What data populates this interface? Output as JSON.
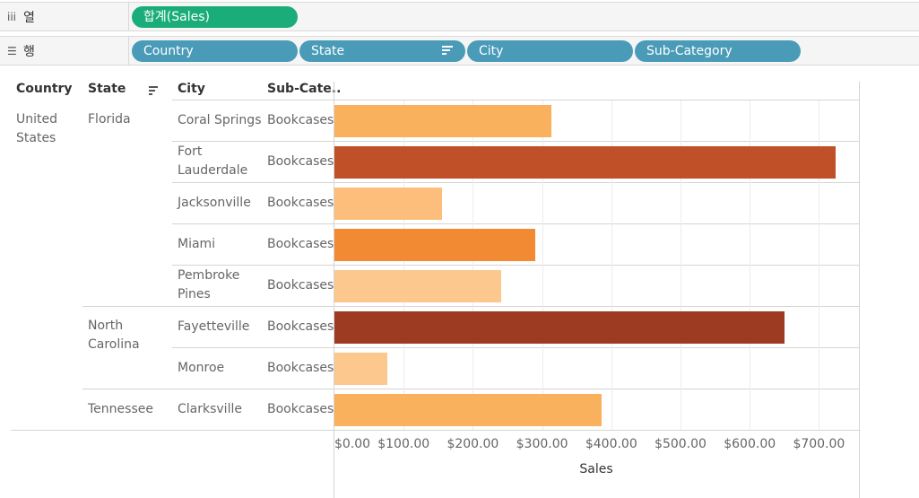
{
  "shelves": {
    "columns": {
      "icon": "iii",
      "label": "열",
      "pills": [
        {
          "text": "합계(Sales)"
        }
      ]
    },
    "rows": {
      "icon": "☰",
      "label": "행",
      "pills": [
        {
          "text": "Country"
        },
        {
          "text": "State"
        },
        {
          "text": "City"
        },
        {
          "text": "Sub-Category"
        }
      ]
    }
  },
  "colors": {
    "measure_pill": "#1aad7a",
    "dimension_pill": "#4a9bb8",
    "bar_scale": [
      "#fdc88e",
      "#f9b15d",
      "#f28a33",
      "#c05027",
      "#9d3b22"
    ]
  },
  "table": {
    "headers": [
      "Country",
      "State",
      "City",
      "Sub-Cate.."
    ],
    "country": {
      "name": "United States"
    },
    "states": [
      {
        "name": "Florida"
      },
      {
        "name": "North Carolina"
      },
      {
        "name": "Tennessee"
      }
    ],
    "rows": [
      {
        "city": "Coral Springs",
        "subcategory": "Bookcases",
        "sales": 313,
        "color": "#f9b15d"
      },
      {
        "city": "Fort Lauderdale",
        "subcategory": "Bookcases",
        "sales": 724,
        "color": "#c05027"
      },
      {
        "city": "Jacksonville",
        "subcategory": "Bookcases",
        "sales": 155,
        "color": "#fcbe7a"
      },
      {
        "city": "Miami",
        "subcategory": "Bookcases",
        "sales": 290,
        "color": "#f28a33"
      },
      {
        "city": "Pembroke Pines",
        "subcategory": "Bookcases",
        "sales": 241,
        "color": "#fdc88e"
      },
      {
        "city": "Fayetteville",
        "subcategory": "Bookcases",
        "sales": 650,
        "color": "#9d3b22"
      },
      {
        "city": "Monroe",
        "subcategory": "Bookcases",
        "sales": 77,
        "color": "#fdc88e"
      },
      {
        "city": "Clarksville",
        "subcategory": "Bookcases",
        "sales": 386,
        "color": "#f9b15d"
      }
    ]
  },
  "chart_data": {
    "type": "bar",
    "orientation": "horizontal",
    "categories": [
      "Coral Springs",
      "Fort Lauderdale",
      "Jacksonville",
      "Miami",
      "Pembroke Pines",
      "Fayetteville",
      "Monroe",
      "Clarksville"
    ],
    "values": [
      313,
      724,
      155,
      290,
      241,
      650,
      77,
      386
    ],
    "xlabel": "Sales",
    "xlim": [
      0,
      760
    ],
    "x_ticks": [
      0,
      100,
      200,
      300,
      400,
      500,
      600,
      700
    ],
    "x_tick_labels": [
      "$0.00",
      "$100.00",
      "$200.00",
      "$300.00",
      "$400.00",
      "$500.00",
      "$600.00",
      "$700.00"
    ],
    "grid": true
  }
}
